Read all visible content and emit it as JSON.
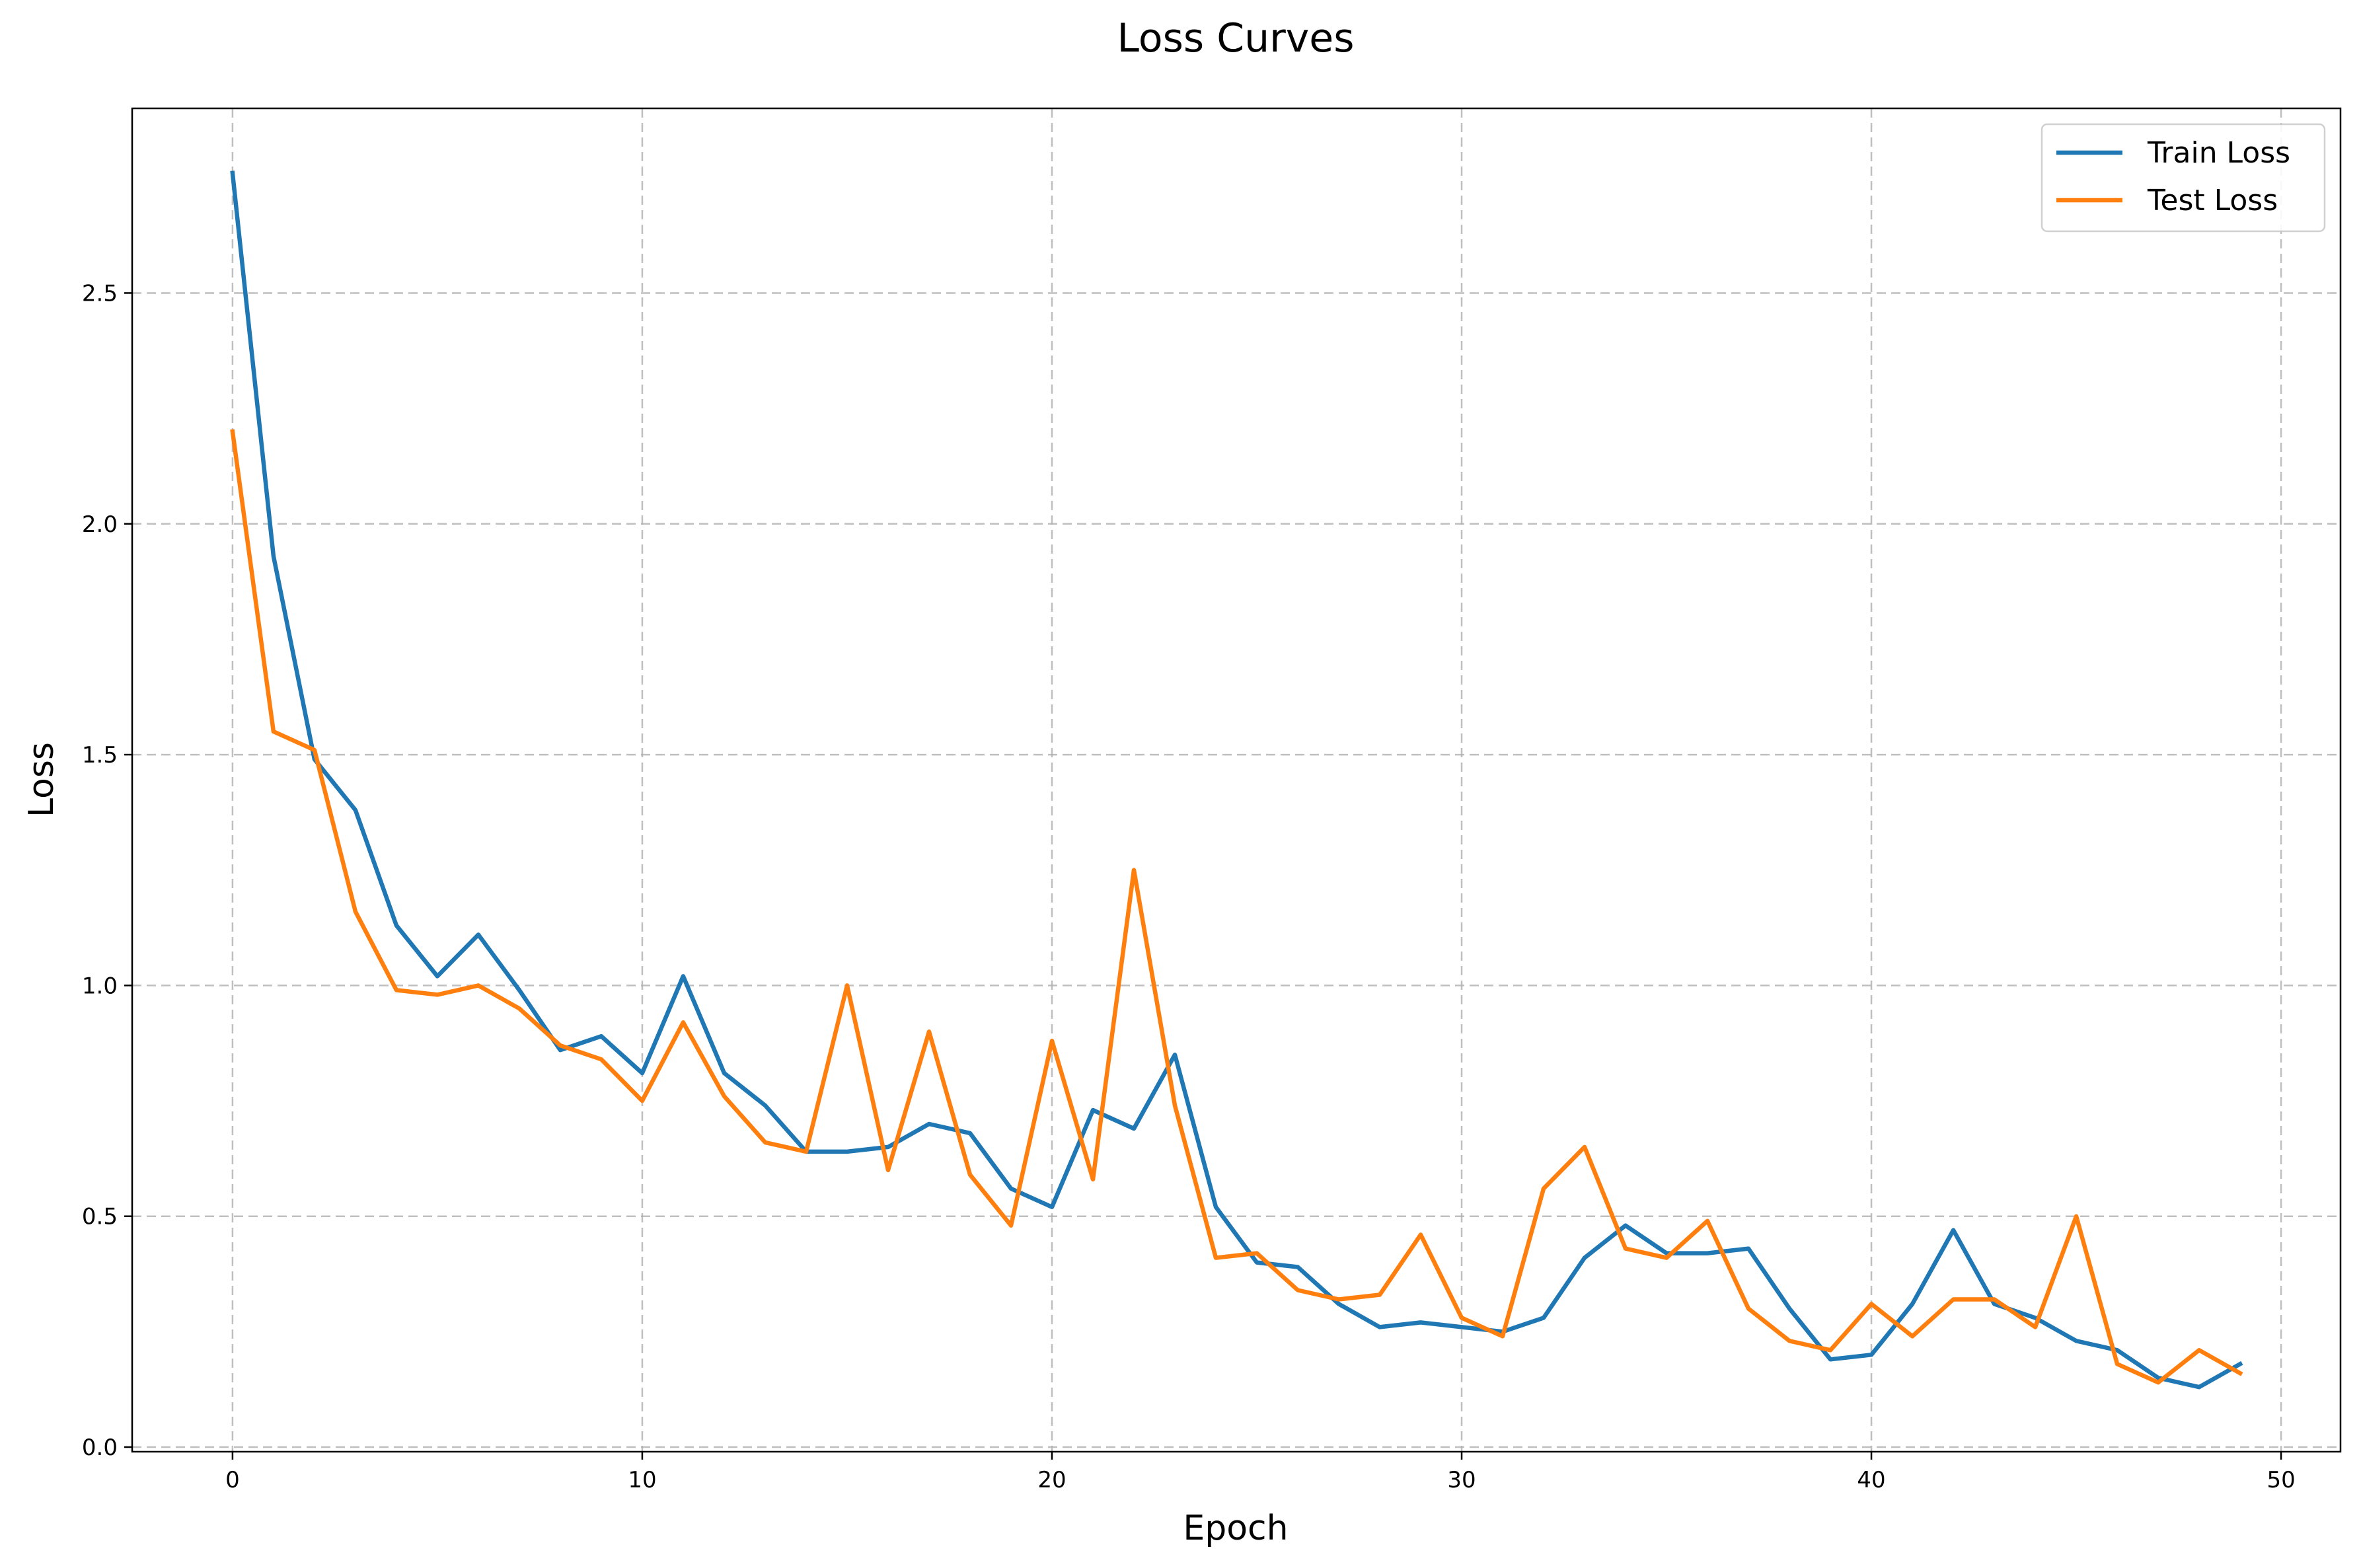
{
  "chart_data": {
    "type": "line",
    "title": "Loss Curves",
    "xlabel": "Epoch",
    "ylabel": "Loss",
    "xlim": [
      -2.45,
      51.45
    ],
    "ylim": [
      -0.01,
      2.9
    ],
    "xticks": [
      0,
      10,
      20,
      30,
      40,
      50
    ],
    "yticks": [
      0.0,
      0.5,
      1.0,
      1.5,
      2.0,
      2.5
    ],
    "xtick_labels": [
      "0",
      "10",
      "20",
      "30",
      "40",
      "50"
    ],
    "ytick_labels": [
      "0.0",
      "0.5",
      "1.0",
      "1.5",
      "2.0",
      "2.5"
    ],
    "grid": true,
    "legend_position": "top-right",
    "x": [
      0,
      1,
      2,
      3,
      4,
      5,
      6,
      7,
      8,
      9,
      10,
      11,
      12,
      13,
      14,
      15,
      16,
      17,
      18,
      19,
      20,
      21,
      22,
      23,
      24,
      25,
      26,
      27,
      28,
      29,
      30,
      31,
      32,
      33,
      34,
      35,
      36,
      37,
      38,
      39,
      40,
      41,
      42,
      43,
      44,
      45,
      46,
      47,
      48,
      49
    ],
    "series": [
      {
        "name": "Train Loss",
        "color": "#1f77b4",
        "values": [
          2.76,
          1.93,
          1.49,
          1.38,
          1.13,
          1.02,
          1.11,
          0.99,
          0.86,
          0.89,
          0.81,
          1.02,
          0.81,
          0.74,
          0.64,
          0.64,
          0.65,
          0.7,
          0.68,
          0.56,
          0.52,
          0.73,
          0.69,
          0.85,
          0.52,
          0.4,
          0.39,
          0.31,
          0.26,
          0.27,
          0.26,
          0.25,
          0.28,
          0.41,
          0.48,
          0.42,
          0.42,
          0.43,
          0.3,
          0.19,
          0.2,
          0.31,
          0.47,
          0.31,
          0.28,
          0.23,
          0.21,
          0.15,
          0.13,
          0.18
        ]
      },
      {
        "name": "Test Loss",
        "color": "#ff7f0e",
        "values": [
          2.2,
          1.55,
          1.51,
          1.16,
          0.99,
          0.98,
          1.0,
          0.95,
          0.87,
          0.84,
          0.75,
          0.92,
          0.76,
          0.66,
          0.64,
          1.0,
          0.6,
          0.9,
          0.59,
          0.48,
          0.88,
          0.58,
          1.25,
          0.74,
          0.41,
          0.42,
          0.34,
          0.32,
          0.33,
          0.46,
          0.28,
          0.24,
          0.56,
          0.65,
          0.43,
          0.41,
          0.49,
          0.3,
          0.23,
          0.21,
          0.31,
          0.24,
          0.32,
          0.32,
          0.26,
          0.5,
          0.18,
          0.14,
          0.21,
          0.16
        ]
      }
    ]
  }
}
